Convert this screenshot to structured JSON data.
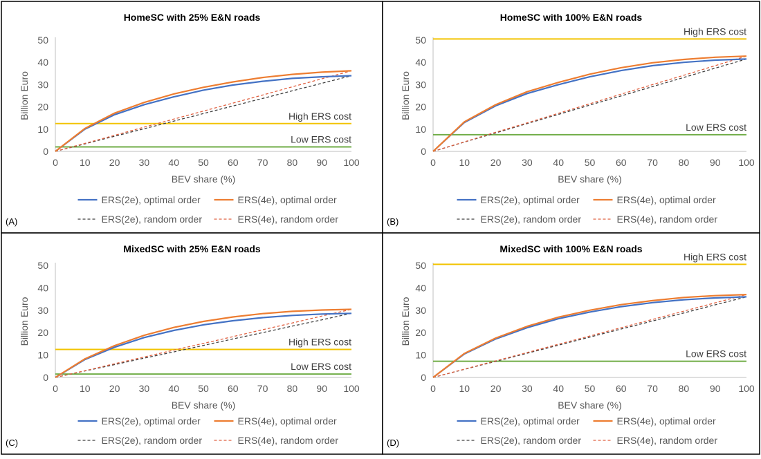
{
  "figure": {
    "legend": [
      {
        "label": "ERS(2e), optimal order",
        "color": "#4472c4",
        "style": "solid"
      },
      {
        "label": "ERS(4e), optimal order",
        "color": "#ed7d31",
        "style": "solid"
      },
      {
        "label": "ERS(2e), random order",
        "color": "#404040",
        "style": "dashed"
      },
      {
        "label": "ERS(4e), random order",
        "color": "#e06040",
        "style": "dashed"
      }
    ]
  },
  "chart_data": [
    {
      "type": "line",
      "panel": "(A)",
      "title": "HomeSC with 25% E&N roads",
      "xlabel": "BEV share (%)",
      "ylabel": "Billion Euro",
      "xlim": [
        0,
        100
      ],
      "ylim": [
        0,
        50
      ],
      "xticks": [
        0,
        10,
        20,
        30,
        40,
        50,
        60,
        70,
        80,
        90,
        100
      ],
      "yticks": [
        0,
        10,
        20,
        30,
        40,
        50
      ],
      "grid": false,
      "legend_position": "bottom",
      "x": [
        0,
        10,
        20,
        30,
        40,
        50,
        60,
        70,
        80,
        90,
        100
      ],
      "series": [
        {
          "name": "ERS(2e), optimal order",
          "values": [
            0,
            10,
            16.5,
            21,
            24.5,
            27.5,
            29.8,
            31.5,
            32.8,
            33.5,
            34
          ],
          "color": "#4472c4",
          "style": "solid"
        },
        {
          "name": "ERS(4e), optimal order",
          "values": [
            0,
            10.3,
            17.2,
            22,
            25.8,
            28.8,
            31.2,
            33.2,
            34.6,
            35.6,
            36.2
          ],
          "color": "#ed7d31",
          "style": "solid"
        },
        {
          "name": "ERS(2e), random order",
          "values": [
            0,
            3.4,
            6.8,
            10.2,
            13.6,
            17,
            20.4,
            23.8,
            27.2,
            30.6,
            34
          ],
          "color": "#404040",
          "style": "dashed"
        },
        {
          "name": "ERS(4e), random order",
          "values": [
            0,
            3.6,
            7.2,
            10.9,
            14.5,
            18.1,
            21.7,
            25.3,
            29,
            32.6,
            36.2
          ],
          "color": "#e06040",
          "style": "dashed"
        }
      ],
      "reference_lines": [
        {
          "label": "High ERS cost",
          "y": 12.5,
          "color": "#f2c300"
        },
        {
          "label": "Low ERS cost",
          "y": 2,
          "color": "#70ad47"
        }
      ]
    },
    {
      "type": "line",
      "panel": "(B)",
      "title": "HomeSC with 100% E&N roads",
      "xlabel": "BEV share (%)",
      "ylabel": "Billion Euro",
      "xlim": [
        0,
        100
      ],
      "ylim": [
        0,
        50
      ],
      "xticks": [
        0,
        10,
        20,
        30,
        40,
        50,
        60,
        70,
        80,
        90,
        100
      ],
      "yticks": [
        0,
        10,
        20,
        30,
        40,
        50
      ],
      "grid": false,
      "legend_position": "bottom",
      "x": [
        0,
        10,
        20,
        30,
        40,
        50,
        60,
        70,
        80,
        90,
        100
      ],
      "series": [
        {
          "name": "ERS(2e), optimal order",
          "values": [
            0,
            13,
            20.5,
            26,
            30,
            33.5,
            36.3,
            38.5,
            40,
            41,
            41.5
          ],
          "color": "#4472c4",
          "style": "solid"
        },
        {
          "name": "ERS(4e), optimal order",
          "values": [
            0,
            13.3,
            21,
            26.8,
            31,
            34.7,
            37.6,
            39.8,
            41.3,
            42.3,
            42.8
          ],
          "color": "#ed7d31",
          "style": "solid"
        },
        {
          "name": "ERS(2e), random order",
          "values": [
            0,
            4.2,
            8.3,
            12.5,
            16.6,
            20.8,
            24.9,
            29.1,
            33.2,
            37.4,
            41.5
          ],
          "color": "#404040",
          "style": "dashed"
        },
        {
          "name": "ERS(4e), random order",
          "values": [
            0,
            4.3,
            8.6,
            12.8,
            17.1,
            21.4,
            25.7,
            30,
            34.2,
            38.5,
            42.8
          ],
          "color": "#e06040",
          "style": "dashed"
        }
      ],
      "reference_lines": [
        {
          "label": "High ERS cost",
          "y": 50.5,
          "color": "#f2c300"
        },
        {
          "label": "Low ERS cost",
          "y": 7.5,
          "color": "#70ad47"
        }
      ]
    },
    {
      "type": "line",
      "panel": "(C)",
      "title": "MixedSC with 25% E&N roads",
      "xlabel": "BEV share (%)",
      "ylabel": "Billion Euro",
      "xlim": [
        0,
        100
      ],
      "ylim": [
        0,
        50
      ],
      "xticks": [
        0,
        10,
        20,
        30,
        40,
        50,
        60,
        70,
        80,
        90,
        100
      ],
      "yticks": [
        0,
        10,
        20,
        30,
        40,
        50
      ],
      "grid": false,
      "legend_position": "bottom",
      "x": [
        0,
        10,
        20,
        30,
        40,
        50,
        60,
        70,
        80,
        90,
        100
      ],
      "series": [
        {
          "name": "ERS(2e), optimal order",
          "values": [
            0,
            8,
            13.5,
            17.8,
            21,
            23.5,
            25.3,
            26.7,
            27.7,
            28.3,
            28.6
          ],
          "color": "#4472c4",
          "style": "solid"
        },
        {
          "name": "ERS(4e), optimal order",
          "values": [
            0,
            8.3,
            14.2,
            18.8,
            22.3,
            25,
            27,
            28.5,
            29.5,
            30.1,
            30.4
          ],
          "color": "#ed7d31",
          "style": "solid"
        },
        {
          "name": "ERS(2e), random order",
          "values": [
            0,
            2.9,
            5.7,
            8.6,
            11.4,
            14.3,
            17.2,
            20,
            22.9,
            25.7,
            28.6
          ],
          "color": "#404040",
          "style": "dashed"
        },
        {
          "name": "ERS(4e), random order",
          "values": [
            0,
            3,
            6.1,
            9.1,
            12.2,
            15.2,
            18.2,
            21.3,
            24.3,
            27.4,
            30.4
          ],
          "color": "#e06040",
          "style": "dashed"
        }
      ],
      "reference_lines": [
        {
          "label": "High ERS cost",
          "y": 12.5,
          "color": "#f2c300"
        },
        {
          "label": "Low ERS cost",
          "y": 1.5,
          "color": "#70ad47"
        }
      ]
    },
    {
      "type": "line",
      "panel": "(D)",
      "title": "MixedSC with 100% E&N roads",
      "xlabel": "BEV share (%)",
      "ylabel": "Billion Euro",
      "xlim": [
        0,
        100
      ],
      "ylim": [
        0,
        50
      ],
      "xticks": [
        0,
        10,
        20,
        30,
        40,
        50,
        60,
        70,
        80,
        90,
        100
      ],
      "yticks": [
        0,
        10,
        20,
        30,
        40,
        50
      ],
      "grid": false,
      "legend_position": "bottom",
      "x": [
        0,
        10,
        20,
        30,
        40,
        50,
        60,
        70,
        80,
        90,
        100
      ],
      "series": [
        {
          "name": "ERS(2e), optimal order",
          "values": [
            0,
            10.5,
            17.2,
            22.2,
            26.2,
            29.2,
            31.6,
            33.4,
            34.7,
            35.5,
            36
          ],
          "color": "#4472c4",
          "style": "solid"
        },
        {
          "name": "ERS(4e), optimal order",
          "values": [
            0,
            10.7,
            17.6,
            22.8,
            26.9,
            30,
            32.5,
            34.3,
            35.7,
            36.5,
            37
          ],
          "color": "#ed7d31",
          "style": "solid"
        },
        {
          "name": "ERS(2e), random order",
          "values": [
            0,
            3.6,
            7.2,
            10.8,
            14.4,
            18,
            21.6,
            25.2,
            28.8,
            32.4,
            36
          ],
          "color": "#404040",
          "style": "dashed"
        },
        {
          "name": "ERS(4e), random order",
          "values": [
            0,
            3.7,
            7.4,
            11.1,
            14.8,
            18.5,
            22.2,
            25.9,
            29.6,
            33.3,
            37
          ],
          "color": "#e06040",
          "style": "dashed"
        }
      ],
      "reference_lines": [
        {
          "label": "High ERS cost",
          "y": 50.5,
          "color": "#f2c300"
        },
        {
          "label": "Low ERS cost",
          "y": 7.2,
          "color": "#70ad47"
        }
      ]
    }
  ]
}
